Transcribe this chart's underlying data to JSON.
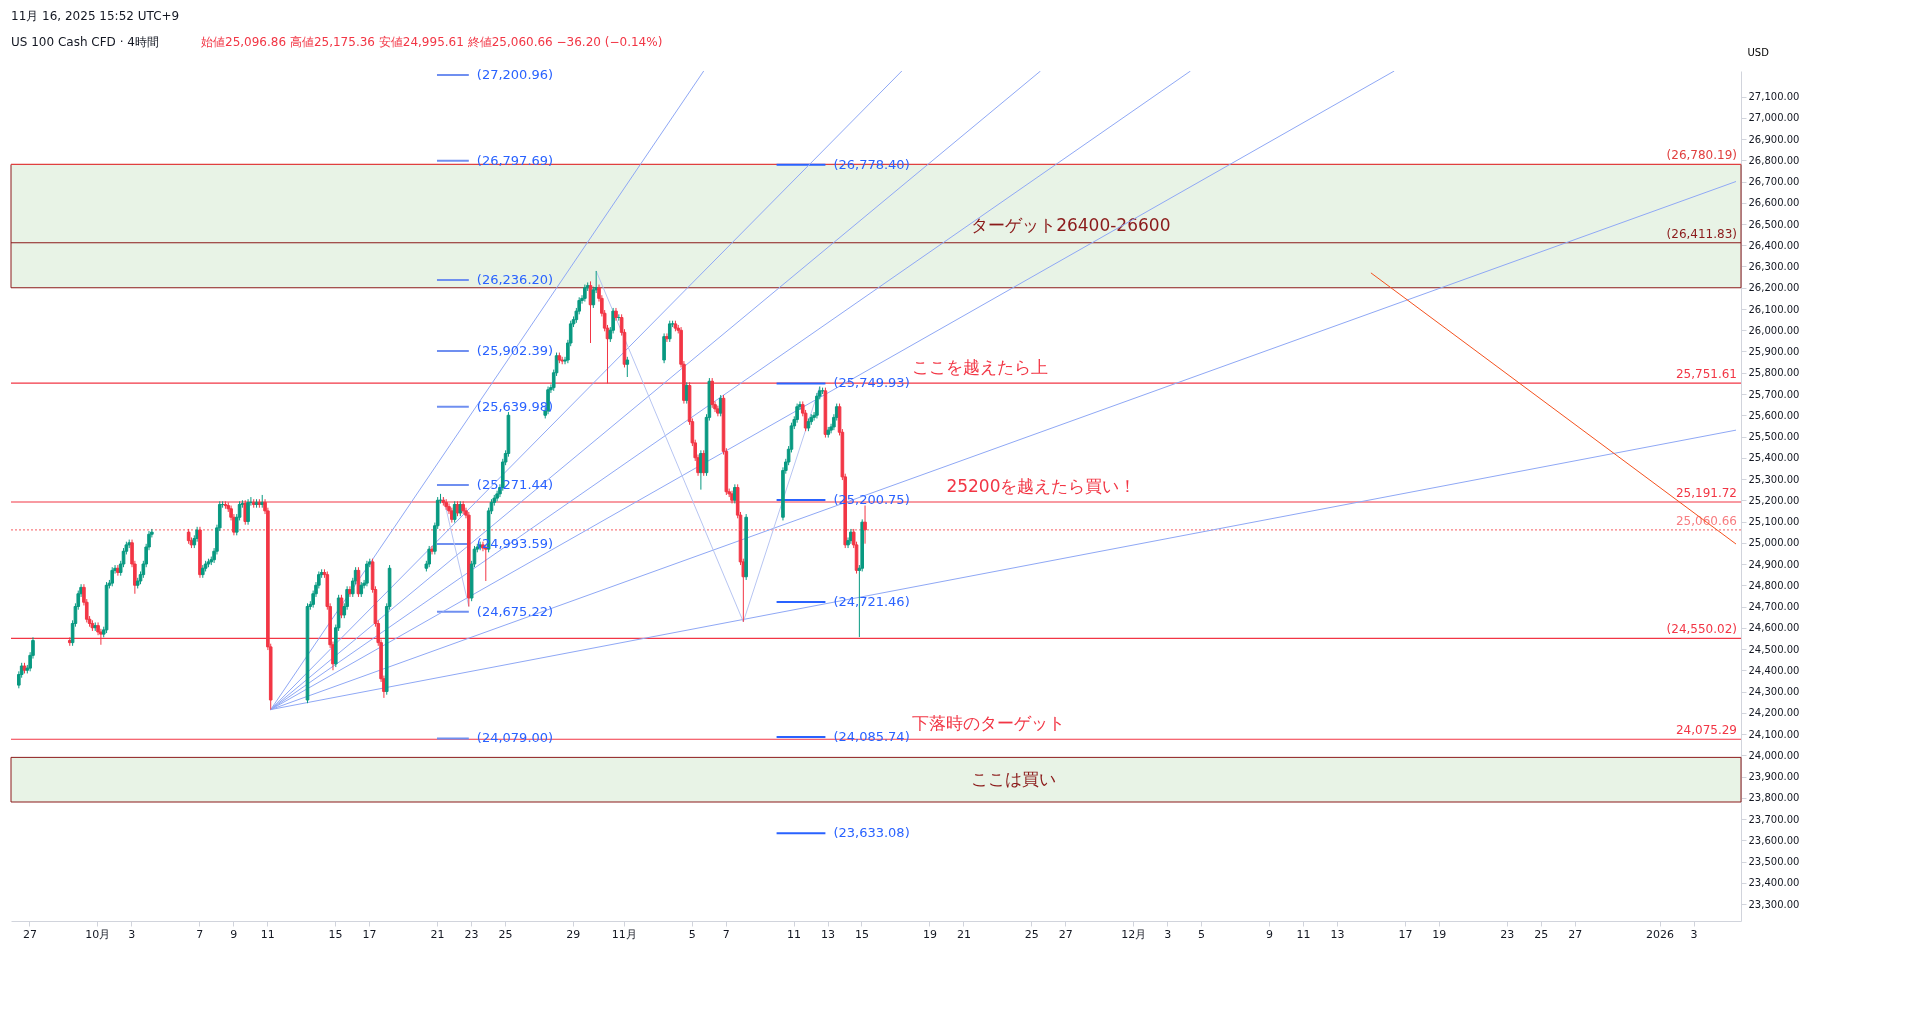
{
  "chart_data": {
    "type": "candlestick",
    "title": "US 100 Cash CFD · 4時間",
    "subtitle": "始値25,096.86 高値25,175.36 安値24,995.61 終値25,060.66 −36.20 (−0.14%)",
    "ylabel": "USD",
    "annotations": [
      "11月 16, 2025 15:52 UTC+9",
      {
        "text": "(27,200.96)",
        "x": "2025-10-22T21:00",
        "y": 27200.96
      },
      {
        "text": "(26,797.69)",
        "x": "2025-10-22T21:00",
        "y": 26797.69
      },
      {
        "text": "(26,236.20)",
        "x": "2025-10-22T21:00",
        "y": 26236.2
      },
      {
        "text": "(25,902.39)",
        "x": "2025-10-22T21:00",
        "y": 25902.39
      },
      {
        "text": "(25,639.98)",
        "x": "2025-10-22T21:00",
        "y": 25639.98
      },
      {
        "text": "(25,271.44)",
        "x": "2025-10-22T21:00",
        "y": 25271.44
      },
      {
        "text": "(24,993.59)",
        "x": "2025-10-22T21:00",
        "y": 24993.59
      },
      {
        "text": "(24,675.22)",
        "x": "2025-10-22T21:00",
        "y": 24675.22
      },
      {
        "text": "(24,079.00)",
        "x": "2025-10-22T21:00",
        "y": 24079.0
      },
      {
        "text": "(26,778.40)",
        "x": "2025-11-12T21:00",
        "y": 26778.4
      },
      {
        "text": "(25,749.93)",
        "x": "2025-11-12T21:00",
        "y": 25749.93
      },
      {
        "text": "(25,200.75)",
        "x": "2025-11-12T21:00",
        "y": 25200.75
      },
      {
        "text": "(24,721.46)",
        "x": "2025-11-12T21:00",
        "y": 24721.46
      },
      {
        "text": "(24,085.74)",
        "x": "2025-11-12T21:00",
        "y": 24085.74
      },
      {
        "text": "(23,633.08)",
        "x": "2025-11-12T21:00",
        "y": 23633.08
      },
      {
        "text": "ここを越えたら上",
        "x": "2025-11-18T00:00",
        "y": 25751.61
      },
      {
        "text": "25200を越えたら買い！",
        "x": "2025-11-20T00:00",
        "y": 25191.72
      },
      {
        "text": "下落時のターゲット",
        "x": "2025-11-18T00:00",
        "y": 24075.29
      }
    ],
    "xlim": [
      "2025-09-26T05:00",
      "2026-01-05T12:00"
    ],
    "ylim": [
      23220,
      27220
    ],
    "xticks": [
      {
        "value": "2025-09-27",
        "label": "27"
      },
      {
        "value": "2025-10-01",
        "label": "10月"
      },
      {
        "value": "2025-10-03",
        "label": "3"
      },
      {
        "value": "2025-10-07",
        "label": "7"
      },
      {
        "value": "2025-10-09",
        "label": "9"
      },
      {
        "value": "2025-10-11",
        "label": "11"
      },
      {
        "value": "2025-10-15",
        "label": "15"
      },
      {
        "value": "2025-10-17",
        "label": "17"
      },
      {
        "value": "2025-10-21",
        "label": "21"
      },
      {
        "value": "2025-10-23",
        "label": "23"
      },
      {
        "value": "2025-10-25",
        "label": "25"
      },
      {
        "value": "2025-10-29",
        "label": "29"
      },
      {
        "value": "2025-11-01",
        "label": "11月"
      },
      {
        "value": "2025-11-05",
        "label": "5"
      },
      {
        "value": "2025-11-07",
        "label": "7"
      },
      {
        "value": "2025-11-11",
        "label": "11"
      },
      {
        "value": "2025-11-13",
        "label": "13"
      },
      {
        "value": "2025-11-15",
        "label": "15"
      },
      {
        "value": "2025-11-19",
        "label": "19"
      },
      {
        "value": "2025-11-21",
        "label": "21"
      },
      {
        "value": "2025-11-25",
        "label": "25"
      },
      {
        "value": "2025-11-27",
        "label": "27"
      },
      {
        "value": "2025-12-01",
        "label": "12月"
      },
      {
        "value": "2025-12-03",
        "label": "3"
      },
      {
        "value": "2025-12-05",
        "label": "5"
      },
      {
        "value": "2025-12-09",
        "label": "9"
      },
      {
        "value": "2025-12-11",
        "label": "11"
      },
      {
        "value": "2025-12-13",
        "label": "13"
      },
      {
        "value": "2025-12-17",
        "label": "17"
      },
      {
        "value": "2025-12-19",
        "label": "19"
      },
      {
        "value": "2025-12-23",
        "label": "23"
      },
      {
        "value": "2025-12-25",
        "label": "25"
      },
      {
        "value": "2025-12-27",
        "label": "27"
      },
      {
        "value": "2026-01-01",
        "label": "2026"
      },
      {
        "value": "2026-01-03",
        "label": "3"
      }
    ],
    "yticks": [
      {
        "value": 23300,
        "label": "23,300.00"
      },
      {
        "value": 23400,
        "label": "23,400.00"
      },
      {
        "value": 23500,
        "label": "23,500.00"
      },
      {
        "value": 23600,
        "label": "23,600.00"
      },
      {
        "value": 23700,
        "label": "23,700.00"
      },
      {
        "value": 23800,
        "label": "23,800.00"
      },
      {
        "value": 23900,
        "label": "23,900.00"
      },
      {
        "value": 24000,
        "label": "24,000.00"
      },
      {
        "value": 24100,
        "label": "24,100.00"
      },
      {
        "value": 24200,
        "label": "24,200.00"
      },
      {
        "value": 24300,
        "label": "24,300.00"
      },
      {
        "value": 24400,
        "label": "24,400.00"
      },
      {
        "value": 24500,
        "label": "24,500.00"
      },
      {
        "value": 24600,
        "label": "24,600.00"
      },
      {
        "value": 24700,
        "label": "24,700.00"
      },
      {
        "value": 24800,
        "label": "24,800.00"
      },
      {
        "value": 24900,
        "label": "24,900.00"
      },
      {
        "value": 25000,
        "label": "25,000.00"
      },
      {
        "value": 25100,
        "label": "25,100.00"
      },
      {
        "value": 25200,
        "label": "25,200.00"
      },
      {
        "value": 25300,
        "label": "25,300.00"
      },
      {
        "value": 25400,
        "label": "25,400.00"
      },
      {
        "value": 25500,
        "label": "25,500.00"
      },
      {
        "value": 25600,
        "label": "25,600.00"
      },
      {
        "value": 25700,
        "label": "25,700.00"
      },
      {
        "value": 25800,
        "label": "25,800.00"
      },
      {
        "value": 25900,
        "label": "25,900.00"
      },
      {
        "value": 26000,
        "label": "26,000.00"
      },
      {
        "value": 26100,
        "label": "26,100.00"
      },
      {
        "value": 26200,
        "label": "26,200.00"
      },
      {
        "value": 26300,
        "label": "26,300.00"
      },
      {
        "value": 26400,
        "label": "26,400.00"
      },
      {
        "value": 26500,
        "label": "26,500.00"
      },
      {
        "value": 26600,
        "label": "26,600.00"
      },
      {
        "value": 26700,
        "label": "26,700.00"
      },
      {
        "value": 26800,
        "label": "26,800.00"
      },
      {
        "value": 26900,
        "label": "26,900.00"
      },
      {
        "value": 27000,
        "label": "27,000.00"
      },
      {
        "value": 27100,
        "label": "27,100.00"
      }
    ],
    "ref_lines": [
      {
        "axis": "y",
        "value": 26780.19,
        "label": "(26,780.19)",
        "color": "#e0403f"
      },
      {
        "axis": "y",
        "value": 26411.83,
        "label": "(26,411.83)",
        "color": "#8b1a1a"
      },
      {
        "axis": "y",
        "value": 25751.61,
        "label": "25,751.61",
        "color": "#f23645"
      },
      {
        "axis": "y",
        "value": 25191.72,
        "label": "25,191.72",
        "color": "#f23645"
      },
      {
        "axis": "y",
        "value": 25060.66,
        "label": "25,060.66",
        "color": "#f77c80",
        "line_style": "dotted"
      },
      {
        "axis": "y",
        "value": 24550.02,
        "label": "(24,550.02)",
        "color": "#f23645"
      },
      {
        "axis": "y",
        "value": 24075.29,
        "label": "24,075.29",
        "color": "#f23645"
      }
    ],
    "bands": [
      {
        "axis": "y",
        "from": 26200,
        "to": 26780,
        "label": "ターゲット26400-26600",
        "color": "#e8f3e6"
      },
      {
        "axis": "y",
        "from": 23780,
        "to": 23990,
        "label": "ここは買い",
        "color": "#e8f3e6"
      }
    ],
    "series": [
      {
        "type": "line",
        "color": "#6f8ff0",
        "x": [
          "2025-10-21T00:00",
          "2025-10-22T21:00"
        ],
        "values": [
          27200.96,
          27200.96
        ]
      },
      {
        "type": "line",
        "color": "#6f8ff0",
        "x": [
          "2025-10-21T00:00",
          "2025-10-22T21:00"
        ],
        "values": [
          26797.69,
          26797.69
        ]
      },
      {
        "type": "line",
        "color": "#6f8ff0",
        "x": [
          "2025-10-21T00:00",
          "2025-10-22T21:00"
        ],
        "values": [
          26236.2,
          26236.2
        ]
      },
      {
        "type": "line",
        "color": "#6f8ff0",
        "x": [
          "2025-10-21T00:00",
          "2025-10-22T21:00"
        ],
        "values": [
          25902.39,
          25902.39
        ]
      },
      {
        "type": "line",
        "color": "#6f8ff0",
        "x": [
          "2025-10-21T00:00",
          "2025-10-22T21:00"
        ],
        "values": [
          25639.98,
          25639.98
        ]
      },
      {
        "type": "line",
        "color": "#6f8ff0",
        "x": [
          "2025-10-21T00:00",
          "2025-10-22T21:00"
        ],
        "values": [
          25271.44,
          25271.44
        ]
      },
      {
        "type": "line",
        "color": "#6f8ff0",
        "x": [
          "2025-10-21T00:00",
          "2025-10-22T21:00"
        ],
        "values": [
          24993.59,
          24993.59
        ]
      },
      {
        "type": "line",
        "color": "#6f8ff0",
        "x": [
          "2025-10-21T00:00",
          "2025-10-22T21:00"
        ],
        "values": [
          24675.22,
          24675.22
        ]
      },
      {
        "type": "line",
        "color": "#6f8ff0",
        "x": [
          "2025-10-21T00:00",
          "2025-10-22T21:00"
        ],
        "values": [
          24079.0,
          24079.0
        ]
      },
      {
        "type": "line",
        "color": "#2962ff",
        "x": [
          "2025-11-10T00:00",
          "2025-11-12T21:00"
        ],
        "values": [
          26778.4,
          26778.4
        ]
      },
      {
        "type": "line",
        "color": "#2962ff",
        "x": [
          "2025-11-10T00:00",
          "2025-11-12T21:00"
        ],
        "values": [
          25749.93,
          25749.93
        ]
      },
      {
        "type": "line",
        "color": "#2962ff",
        "x": [
          "2025-11-10T00:00",
          "2025-11-12T21:00"
        ],
        "values": [
          25200.75,
          25200.75
        ]
      },
      {
        "type": "line",
        "color": "#2962ff",
        "x": [
          "2025-11-10T00:00",
          "2025-11-12T21:00"
        ],
        "values": [
          24721.46,
          24721.46
        ]
      },
      {
        "type": "line",
        "color": "#2962ff",
        "x": [
          "2025-11-10T00:00",
          "2025-11-12T21:00"
        ],
        "values": [
          24085.74,
          24085.74
        ]
      },
      {
        "type": "line",
        "color": "#2962ff",
        "x": [
          "2025-11-10T00:00",
          "2025-11-12T21:00"
        ],
        "values": [
          23633.08,
          23633.08
        ]
      },
      {
        "type": "line",
        "color": "#8fa8f5",
        "x": [
          "2025-10-11T05:00",
          "2025-11-05T17:00"
        ],
        "values": [
          24215,
          27220
        ]
      },
      {
        "type": "line",
        "color": "#8fa8f5",
        "x": [
          "2025-10-11T05:00",
          "2025-11-17T09:00"
        ],
        "values": [
          24215,
          27220
        ]
      },
      {
        "type": "line",
        "color": "#8fa8f5",
        "x": [
          "2025-10-11T05:00",
          "2025-11-25T13:00"
        ],
        "values": [
          24215,
          27220
        ]
      },
      {
        "type": "line",
        "color": "#8fa8f5",
        "x": [
          "2025-10-11T05:00",
          "2025-12-04T09:00"
        ],
        "values": [
          24215,
          27220
        ]
      },
      {
        "type": "line",
        "color": "#8fa8f5",
        "x": [
          "2025-10-11T05:00",
          "2025-12-16T09:00"
        ],
        "values": [
          24215,
          27220
        ]
      },
      {
        "type": "line",
        "color": "#8fa8f5",
        "x": [
          "2025-10-11T05:00",
          "2026-01-05T12:00"
        ],
        "values": [
          24215,
          26700
        ]
      },
      {
        "type": "line",
        "color": "#8fa8f5",
        "x": [
          "2025-10-11T05:00",
          "2026-01-05T12:00"
        ],
        "values": [
          24215,
          25530
        ]
      },
      {
        "type": "line",
        "color": "#b7c5f2",
        "x": [
          "2025-10-21T09:00",
          "2025-10-22T21:00"
        ],
        "values": [
          25215,
          24700
        ]
      },
      {
        "type": "line",
        "color": "#b7c5f2",
        "x": [
          "2025-10-30T09:00",
          "2025-11-08T01:00",
          "2025-11-12T13:00"
        ],
        "values": [
          26279,
          24628,
          25735
        ]
      },
      {
        "type": "line",
        "color": "#f4511e",
        "x": [
          "2025-12-15T00:00",
          "2026-01-05T12:00"
        ],
        "values": [
          26270,
          24994
        ]
      }
    ],
    "x": [
      "2025-09-26T09:00",
      "2025-09-26T13:00",
      "2025-09-26T17:00",
      "2025-09-26T21:00",
      "2025-09-27T01:00",
      "2025-09-27T05:00",
      "2025-09-29T09:00",
      "2025-09-29T13:00",
      "2025-09-29T17:00",
      "2025-09-29T21:00",
      "2025-09-30T01:00",
      "2025-09-30T05:00",
      "2025-09-30T09:00",
      "2025-09-30T13:00",
      "2025-09-30T17:00",
      "2025-09-30T21:00",
      "2025-10-01T01:00",
      "2025-10-01T05:00",
      "2025-10-01T09:00",
      "2025-10-01T13:00",
      "2025-10-01T17:00",
      "2025-10-01T21:00",
      "2025-10-02T01:00",
      "2025-10-02T05:00",
      "2025-10-02T09:00",
      "2025-10-02T13:00",
      "2025-10-02T17:00",
      "2025-10-02T21:00",
      "2025-10-03T01:00",
      "2025-10-03T05:00",
      "2025-10-03T09:00",
      "2025-10-03T13:00",
      "2025-10-03T17:00",
      "2025-10-03T21:00",
      "2025-10-04T01:00",
      "2025-10-04T05:00",
      "2025-10-06T09:00",
      "2025-10-06T13:00",
      "2025-10-06T17:00",
      "2025-10-06T21:00",
      "2025-10-07T01:00",
      "2025-10-07T05:00",
      "2025-10-07T09:00",
      "2025-10-07T13:00",
      "2025-10-07T17:00",
      "2025-10-07T21:00",
      "2025-10-08T01:00",
      "2025-10-08T05:00",
      "2025-10-08T09:00",
      "2025-10-08T13:00",
      "2025-10-08T17:00",
      "2025-10-08T21:00",
      "2025-10-09T01:00",
      "2025-10-09T05:00",
      "2025-10-09T09:00",
      "2025-10-09T13:00",
      "2025-10-09T17:00",
      "2025-10-09T21:00",
      "2025-10-10T01:00",
      "2025-10-10T05:00",
      "2025-10-10T09:00",
      "2025-10-10T13:00",
      "2025-10-10T17:00",
      "2025-10-10T21:00",
      "2025-10-11T01:00",
      "2025-10-11T05:00",
      "2025-10-13T09:00",
      "2025-10-13T13:00",
      "2025-10-13T17:00",
      "2025-10-13T21:00",
      "2025-10-14T01:00",
      "2025-10-14T05:00",
      "2025-10-14T09:00",
      "2025-10-14T13:00",
      "2025-10-14T17:00",
      "2025-10-14T21:00",
      "2025-10-15T01:00",
      "2025-10-15T05:00",
      "2025-10-15T09:00",
      "2025-10-15T13:00",
      "2025-10-15T17:00",
      "2025-10-15T21:00",
      "2025-10-16T01:00",
      "2025-10-16T05:00",
      "2025-10-16T09:00",
      "2025-10-16T13:00",
      "2025-10-16T17:00",
      "2025-10-16T21:00",
      "2025-10-17T01:00",
      "2025-10-17T05:00",
      "2025-10-17T09:00",
      "2025-10-17T13:00",
      "2025-10-17T17:00",
      "2025-10-17T21:00",
      "2025-10-18T01:00",
      "2025-10-18T05:00",
      "2025-10-20T09:00",
      "2025-10-20T13:00",
      "2025-10-20T17:00",
      "2025-10-20T21:00",
      "2025-10-21T01:00",
      "2025-10-21T05:00",
      "2025-10-21T09:00",
      "2025-10-21T13:00",
      "2025-10-21T17:00",
      "2025-10-21T21:00",
      "2025-10-22T01:00",
      "2025-10-22T05:00",
      "2025-10-22T09:00",
      "2025-10-22T13:00",
      "2025-10-22T17:00",
      "2025-10-22T21:00",
      "2025-10-23T01:00",
      "2025-10-23T05:00",
      "2025-10-23T09:00",
      "2025-10-23T13:00",
      "2025-10-23T17:00",
      "2025-10-23T21:00",
      "2025-10-24T01:00",
      "2025-10-24T05:00",
      "2025-10-24T09:00",
      "2025-10-24T13:00",
      "2025-10-24T17:00",
      "2025-10-24T21:00",
      "2025-10-25T01:00",
      "2025-10-25T05:00",
      "2025-10-27T09:00",
      "2025-10-27T13:00",
      "2025-10-27T17:00",
      "2025-10-27T21:00",
      "2025-10-28T01:00",
      "2025-10-28T05:00",
      "2025-10-28T09:00",
      "2025-10-28T13:00",
      "2025-10-28T17:00",
      "2025-10-28T21:00",
      "2025-10-29T01:00",
      "2025-10-29T05:00",
      "2025-10-29T09:00",
      "2025-10-29T13:00",
      "2025-10-29T17:00",
      "2025-10-29T21:00",
      "2025-10-30T01:00",
      "2025-10-30T05:00",
      "2025-10-30T09:00",
      "2025-10-30T13:00",
      "2025-10-30T17:00",
      "2025-10-30T21:00",
      "2025-10-31T01:00",
      "2025-10-31T05:00",
      "2025-10-31T09:00",
      "2025-10-31T13:00",
      "2025-10-31T17:00",
      "2025-10-31T21:00",
      "2025-11-01T01:00",
      "2025-11-01T05:00",
      "2025-11-03T09:00",
      "2025-11-03T13:00",
      "2025-11-03T17:00",
      "2025-11-03T21:00",
      "2025-11-04T01:00",
      "2025-11-04T05:00",
      "2025-11-04T09:00",
      "2025-11-04T13:00",
      "2025-11-04T17:00",
      "2025-11-04T21:00",
      "2025-11-05T01:00",
      "2025-11-05T05:00",
      "2025-11-05T09:00",
      "2025-11-05T13:00",
      "2025-11-05T17:00",
      "2025-11-05T21:00",
      "2025-11-06T01:00",
      "2025-11-06T05:00",
      "2025-11-06T09:00",
      "2025-11-06T13:00",
      "2025-11-06T17:00",
      "2025-11-06T21:00",
      "2025-11-07T01:00",
      "2025-11-07T05:00",
      "2025-11-07T09:00",
      "2025-11-07T13:00",
      "2025-11-07T17:00",
      "2025-11-07T21:00",
      "2025-11-08T01:00",
      "2025-11-08T05:00",
      "2025-11-10T09:00",
      "2025-11-10T13:00",
      "2025-11-10T17:00",
      "2025-11-10T21:00",
      "2025-11-11T01:00",
      "2025-11-11T05:00",
      "2025-11-11T09:00",
      "2025-11-11T13:00",
      "2025-11-11T17:00",
      "2025-11-11T21:00",
      "2025-11-12T01:00",
      "2025-11-12T05:00",
      "2025-11-12T09:00",
      "2025-11-12T13:00",
      "2025-11-12T17:00",
      "2025-11-12T21:00",
      "2025-11-13T01:00",
      "2025-11-13T05:00",
      "2025-11-13T09:00",
      "2025-11-13T13:00",
      "2025-11-13T17:00",
      "2025-11-13T21:00",
      "2025-11-14T01:00",
      "2025-11-14T05:00",
      "2025-11-14T09:00",
      "2025-11-14T13:00",
      "2025-11-14T17:00",
      "2025-11-14T21:00",
      "2025-11-15T01:00",
      "2025-11-15T05:00"
    ],
    "ohlc": [
      [
        24330,
        24395,
        24315,
        24380
      ],
      [
        24380,
        24435,
        24365,
        24420
      ],
      [
        24420,
        24435,
        24385,
        24400
      ],
      [
        24400,
        24425,
        24385,
        24410
      ],
      [
        24410,
        24485,
        24395,
        24470
      ],
      [
        24470,
        24555,
        24455,
        24540
      ],
      [
        24540,
        24555,
        24515,
        24530
      ],
      [
        24530,
        24635,
        24515,
        24620
      ],
      [
        24620,
        24715,
        24605,
        24700
      ],
      [
        24700,
        24775,
        24685,
        24760
      ],
      [
        24760,
        24805,
        24745,
        24790
      ],
      [
        24790,
        24805,
        24705,
        24720
      ],
      [
        24720,
        24735,
        24625,
        24640
      ],
      [
        24640,
        24655,
        24605,
        24620
      ],
      [
        24620,
        24635,
        24585,
        24600
      ],
      [
        24600,
        24625,
        24585,
        24610
      ],
      [
        24610,
        24625,
        24565,
        24580
      ],
      [
        24580,
        24595,
        24520,
        24570
      ],
      [
        24570,
        24605,
        24555,
        24590
      ],
      [
        24590,
        24815,
        24575,
        24800
      ],
      [
        24800,
        24825,
        24785,
        24810
      ],
      [
        24810,
        24885,
        24795,
        24870
      ],
      [
        24870,
        24895,
        24855,
        24880
      ],
      [
        24880,
        24895,
        24845,
        24860
      ],
      [
        24860,
        24915,
        24845,
        24900
      ],
      [
        24900,
        24975,
        24885,
        24960
      ],
      [
        24960,
        25005,
        24945,
        24990
      ],
      [
        24990,
        25015,
        24975,
        25000
      ],
      [
        25000,
        25015,
        24885,
        24900
      ],
      [
        24900,
        24915,
        24760,
        24800
      ],
      [
        24800,
        24835,
        24785,
        24820
      ],
      [
        24820,
        24865,
        24805,
        24850
      ],
      [
        24850,
        24915,
        24835,
        24900
      ],
      [
        24900,
        24995,
        24885,
        24980
      ],
      [
        24980,
        25055,
        24965,
        25040
      ],
      [
        25040,
        25065,
        25025,
        25050
      ],
      [
        25050,
        25065,
        24995,
        25010
      ],
      [
        25010,
        25025,
        24975,
        24990
      ],
      [
        24990,
        25035,
        24975,
        25020
      ],
      [
        25020,
        25075,
        25005,
        25060
      ],
      [
        25060,
        25075,
        24835,
        24850
      ],
      [
        24850,
        24895,
        24835,
        24880
      ],
      [
        24880,
        24915,
        24865,
        24900
      ],
      [
        24900,
        24925,
        24885,
        24910
      ],
      [
        24910,
        24935,
        24895,
        24920
      ],
      [
        24920,
        24975,
        24905,
        24960
      ],
      [
        24960,
        25085,
        24945,
        25070
      ],
      [
        25070,
        25195,
        25055,
        25180
      ],
      [
        25180,
        25195,
        25165,
        25180
      ],
      [
        25180,
        25195,
        25160,
        25175
      ],
      [
        25175,
        25190,
        25145,
        25160
      ],
      [
        25160,
        25175,
        25105,
        25120
      ],
      [
        25120,
        25135,
        25035,
        25050
      ],
      [
        25050,
        25135,
        25035,
        25120
      ],
      [
        25120,
        25195,
        25105,
        25180
      ],
      [
        25180,
        25200,
        25165,
        25185
      ],
      [
        25185,
        25200,
        25085,
        25100
      ],
      [
        25100,
        25205,
        25085,
        25190
      ],
      [
        25190,
        25215,
        25175,
        25190
      ],
      [
        25190,
        25205,
        25165,
        25180
      ],
      [
        25180,
        25205,
        25165,
        25190
      ],
      [
        25190,
        25205,
        25165,
        25180
      ],
      [
        25180,
        25225,
        25165,
        25190
      ],
      [
        25190,
        25205,
        25135,
        25150
      ],
      [
        25150,
        25165,
        24495,
        24510
      ],
      [
        24510,
        24525,
        24215,
        24260
      ],
      [
        24260,
        24715,
        24245,
        24700
      ],
      [
        24700,
        24725,
        24685,
        24710
      ],
      [
        24710,
        24775,
        24695,
        24760
      ],
      [
        24760,
        24815,
        24745,
        24800
      ],
      [
        24800,
        24865,
        24785,
        24850
      ],
      [
        24850,
        24875,
        24835,
        24860
      ],
      [
        24860,
        24875,
        24835,
        24850
      ],
      [
        24850,
        24865,
        24685,
        24700
      ],
      [
        24700,
        24715,
        24505,
        24520
      ],
      [
        24520,
        24535,
        24400,
        24430
      ],
      [
        24430,
        24615,
        24415,
        24600
      ],
      [
        24600,
        24755,
        24585,
        24740
      ],
      [
        24740,
        24755,
        24645,
        24660
      ],
      [
        24660,
        24715,
        24645,
        24700
      ],
      [
        24700,
        24795,
        24685,
        24780
      ],
      [
        24780,
        24795,
        24745,
        24760
      ],
      [
        24760,
        24835,
        24745,
        24820
      ],
      [
        24820,
        24885,
        24805,
        24870
      ],
      [
        24870,
        24885,
        24745,
        24760
      ],
      [
        24760,
        24815,
        24745,
        24800
      ],
      [
        24800,
        24825,
        24785,
        24810
      ],
      [
        24810,
        24915,
        24795,
        24900
      ],
      [
        24900,
        24925,
        24885,
        24910
      ],
      [
        24910,
        24925,
        24765,
        24780
      ],
      [
        24780,
        24795,
        24605,
        24620
      ],
      [
        24620,
        24635,
        24515,
        24530
      ],
      [
        24530,
        24545,
        24345,
        24360
      ],
      [
        24360,
        24375,
        24270,
        24300
      ],
      [
        24300,
        24715,
        24285,
        24700
      ],
      [
        24700,
        24895,
        24685,
        24880
      ],
      [
        24880,
        24915,
        24865,
        24900
      ],
      [
        24900,
        24985,
        24885,
        24970
      ],
      [
        24970,
        24985,
        24945,
        24960
      ],
      [
        24960,
        25095,
        24945,
        25080
      ],
      [
        25080,
        25215,
        25065,
        25200
      ],
      [
        25200,
        25230,
        25185,
        25200
      ],
      [
        25200,
        25215,
        25175,
        25190
      ],
      [
        25190,
        25205,
        25155,
        25170
      ],
      [
        25170,
        25185,
        25135,
        25150
      ],
      [
        25150,
        25165,
        25095,
        25110
      ],
      [
        25110,
        25195,
        25095,
        25180
      ],
      [
        25180,
        25195,
        25125,
        25140
      ],
      [
        25140,
        25195,
        25125,
        25180
      ],
      [
        25180,
        25195,
        25135,
        25150
      ],
      [
        25150,
        25165,
        25115,
        25130
      ],
      [
        25130,
        25145,
        24700,
        24740
      ],
      [
        24740,
        24915,
        24725,
        24900
      ],
      [
        24900,
        24985,
        24885,
        24970
      ],
      [
        24970,
        24995,
        24955,
        24980
      ],
      [
        24980,
        25005,
        24965,
        24990
      ],
      [
        24990,
        25005,
        24960,
        24975
      ],
      [
        24975,
        24990,
        24820,
        24970
      ],
      [
        24970,
        25165,
        24955,
        25150
      ],
      [
        25150,
        25205,
        25135,
        25190
      ],
      [
        25190,
        25225,
        25175,
        25210
      ],
      [
        25210,
        25245,
        25195,
        25230
      ],
      [
        25230,
        25275,
        25215,
        25260
      ],
      [
        25260,
        25395,
        25245,
        25380
      ],
      [
        25380,
        25435,
        25365,
        25420
      ],
      [
        25420,
        25615,
        25405,
        25600
      ],
      [
        25600,
        25635,
        25585,
        25620
      ],
      [
        25620,
        25735,
        25605,
        25720
      ],
      [
        25720,
        25745,
        25705,
        25730
      ],
      [
        25730,
        25815,
        25715,
        25800
      ],
      [
        25800,
        25895,
        25785,
        25880
      ],
      [
        25880,
        25895,
        25845,
        25860
      ],
      [
        25860,
        25875,
        25840,
        25855
      ],
      [
        25855,
        25875,
        25840,
        25860
      ],
      [
        25860,
        25955,
        25845,
        25940
      ],
      [
        25940,
        26045,
        25925,
        26030
      ],
      [
        26030,
        26065,
        26015,
        26050
      ],
      [
        26050,
        26105,
        26035,
        26090
      ],
      [
        26090,
        26155,
        26075,
        26140
      ],
      [
        26140,
        26165,
        26125,
        26150
      ],
      [
        26150,
        26215,
        26135,
        26200
      ],
      [
        26200,
        26225,
        26185,
        26210
      ],
      [
        26210,
        26230,
        25940,
        26120
      ],
      [
        26120,
        26205,
        26105,
        26190
      ],
      [
        26190,
        26279,
        26175,
        26200
      ],
      [
        26200,
        26215,
        26135,
        26150
      ],
      [
        26150,
        26165,
        26065,
        26080
      ],
      [
        26080,
        26095,
        25995,
        26010
      ],
      [
        26010,
        26025,
        25750,
        25960
      ],
      [
        25960,
        26015,
        25945,
        26000
      ],
      [
        26000,
        26105,
        25985,
        26090
      ],
      [
        26090,
        26105,
        26045,
        26060
      ],
      [
        26060,
        26075,
        26045,
        26060
      ],
      [
        26060,
        26075,
        25975,
        25990
      ],
      [
        25990,
        26005,
        25825,
        25840
      ],
      [
        25840,
        25875,
        25780,
        25860
      ],
      [
        25860,
        25985,
        25845,
        25970
      ],
      [
        25970,
        25985,
        25945,
        25960
      ],
      [
        25960,
        26045,
        25945,
        26030
      ],
      [
        26030,
        26045,
        26015,
        26030
      ],
      [
        26030,
        26045,
        25995,
        26010
      ],
      [
        26010,
        26025,
        25985,
        26000
      ],
      [
        26000,
        26015,
        25825,
        25840
      ],
      [
        25840,
        25855,
        25655,
        25670
      ],
      [
        25670,
        25755,
        25655,
        25740
      ],
      [
        25740,
        25755,
        25555,
        25570
      ],
      [
        25570,
        25585,
        25455,
        25470
      ],
      [
        25470,
        25485,
        25385,
        25400
      ],
      [
        25400,
        25415,
        25315,
        25330
      ],
      [
        25330,
        25435,
        25250,
        25420
      ],
      [
        25420,
        25435,
        25315,
        25330
      ],
      [
        25330,
        25605,
        25315,
        25590
      ],
      [
        25590,
        25775,
        25575,
        25760
      ],
      [
        25760,
        25775,
        25635,
        25650
      ],
      [
        25650,
        25665,
        25615,
        25630
      ],
      [
        25630,
        25645,
        25595,
        25610
      ],
      [
        25610,
        25695,
        25595,
        25680
      ],
      [
        25680,
        25695,
        25415,
        25430
      ],
      [
        25430,
        25445,
        25225,
        25240
      ],
      [
        25240,
        25255,
        25215,
        25230
      ],
      [
        25230,
        25245,
        25185,
        25200
      ],
      [
        25200,
        25275,
        25185,
        25260
      ],
      [
        25260,
        25275,
        25115,
        25130
      ],
      [
        25130,
        25145,
        24895,
        24910
      ],
      [
        24910,
        24925,
        24628,
        24840
      ],
      [
        24840,
        25135,
        24825,
        25120
      ],
      [
        25120,
        25355,
        25105,
        25340
      ],
      [
        25340,
        25395,
        25325,
        25380
      ],
      [
        25380,
        25455,
        25365,
        25440
      ],
      [
        25440,
        25565,
        25425,
        25550
      ],
      [
        25550,
        25595,
        25535,
        25580
      ],
      [
        25580,
        25655,
        25565,
        25640
      ],
      [
        25640,
        25665,
        25625,
        25650
      ],
      [
        25650,
        25665,
        25595,
        25610
      ],
      [
        25610,
        25625,
        25525,
        25540
      ],
      [
        25540,
        25585,
        25525,
        25570
      ],
      [
        25570,
        25605,
        25555,
        25590
      ],
      [
        25590,
        25615,
        25575,
        25600
      ],
      [
        25600,
        25705,
        25585,
        25690
      ],
      [
        25690,
        25735,
        25675,
        25715
      ],
      [
        25715,
        25730,
        25700,
        25715
      ],
      [
        25715,
        25730,
        25495,
        25510
      ],
      [
        25510,
        25545,
        25495,
        25530
      ],
      [
        25530,
        25560,
        25515,
        25545
      ],
      [
        25545,
        25605,
        25530,
        25590
      ],
      [
        25590,
        25655,
        25575,
        25640
      ],
      [
        25640,
        25655,
        25505,
        25520
      ],
      [
        25520,
        25535,
        25295,
        25310
      ],
      [
        25310,
        25325,
        24975,
        24990
      ],
      [
        24990,
        25025,
        24975,
        25010
      ],
      [
        25010,
        25065,
        24995,
        25050
      ],
      [
        25050,
        25065,
        24975,
        24990
      ],
      [
        24990,
        25005,
        24855,
        24870
      ],
      [
        24870,
        24895,
        24556,
        24880
      ],
      [
        24880,
        25110,
        24865,
        25096.86
      ],
      [
        25096.86,
        25175.36,
        24995.61,
        25060.66
      ]
    ]
  }
}
